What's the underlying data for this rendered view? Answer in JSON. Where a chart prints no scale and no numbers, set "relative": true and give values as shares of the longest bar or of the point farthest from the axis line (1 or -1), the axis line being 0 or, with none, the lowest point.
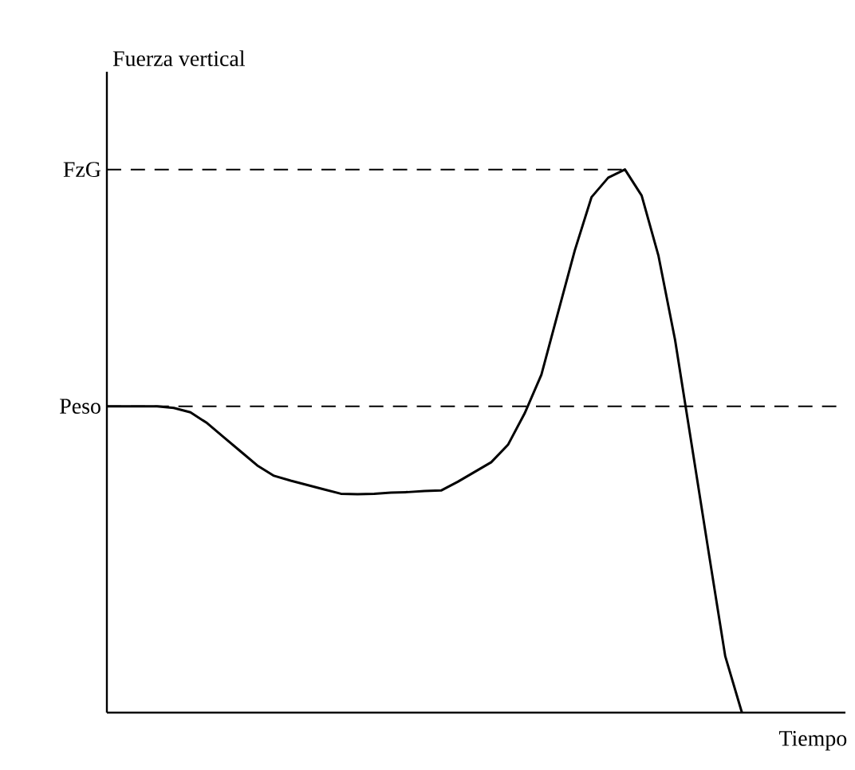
{
  "chart_data": {
    "type": "line",
    "ylabel": "Fuerza vertical",
    "xlabel": "Tiempo",
    "color": "#000000",
    "marker": "none",
    "line_style": "solid",
    "categories": [
      null,
      null,
      null,
      null,
      null,
      null,
      null,
      null,
      null,
      null,
      null,
      null,
      null,
      null,
      null,
      null,
      null,
      null,
      null,
      null,
      null,
      null,
      null,
      null,
      null,
      null,
      null,
      null,
      null,
      null,
      null,
      null,
      null,
      null,
      null,
      null,
      null,
      null,
      null
    ],
    "values": [
      0.564,
      0.564,
      0.564,
      0.564,
      0.561,
      0.553,
      0.533,
      0.507,
      0.481,
      0.455,
      0.436,
      0.427,
      0.419,
      0.411,
      0.403,
      0.402,
      0.403,
      0.405,
      0.406,
      0.408,
      0.409,
      0.425,
      0.443,
      0.461,
      0.493,
      0.551,
      0.622,
      0.737,
      0.851,
      0.949,
      0.985,
      1,
      0.952,
      0.842,
      0.686,
      0.492,
      0.297,
      0.104,
      0
    ],
    "relative": true,
    "ref_lines": [
      {
        "axis": "y",
        "value": 0.564,
        "label": "Peso",
        "line_style": "dashed"
      },
      {
        "axis": "y",
        "value": 1,
        "label": "FzG",
        "line_style": "dashed"
      }
    ]
  }
}
